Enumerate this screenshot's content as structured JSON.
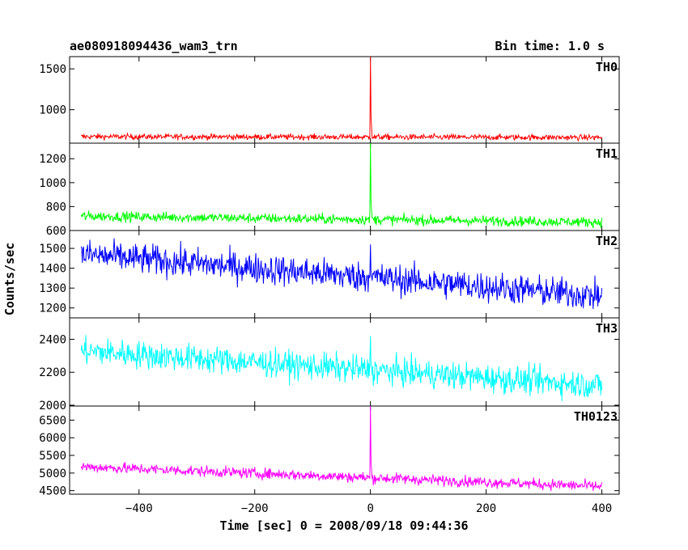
{
  "header": {
    "title": "ae080918094436_wam3_trn",
    "bin_time": "Bin time: 1.0 s"
  },
  "axes": {
    "xlabel": "Time [sec] 0 = 2008/09/18 09:44:36",
    "ylabel": "Counts/sec"
  },
  "chart_data": [
    {
      "type": "line",
      "name": "TH0",
      "color": "#ff0000",
      "x_range": [
        -500,
        400
      ],
      "ylim": [
        590,
        1650
      ],
      "yticks": [
        1000,
        1500
      ],
      "baseline": [
        [
          -500,
          670
        ],
        [
          400,
          660
        ]
      ],
      "noise": 25,
      "peak": {
        "x": 0,
        "y": 1650
      }
    },
    {
      "type": "line",
      "name": "TH1",
      "color": "#00ff00",
      "x_range": [
        -500,
        400
      ],
      "ylim": [
        600,
        1330
      ],
      "yticks": [
        600,
        800,
        1000,
        1200
      ],
      "baseline": [
        [
          -500,
          720
        ],
        [
          400,
          670
        ]
      ],
      "noise": 30,
      "peak": {
        "x": 0,
        "y": 1330
      }
    },
    {
      "type": "line",
      "name": "TH2",
      "color": "#0000ff",
      "x_range": [
        -500,
        400
      ],
      "ylim": [
        1150,
        1590
      ],
      "yticks": [
        1200,
        1300,
        1400,
        1500
      ],
      "baseline": [
        [
          -500,
          1470
        ],
        [
          400,
          1260
        ]
      ],
      "noise": 55,
      "peak": {
        "x": 0,
        "y": 1520
      }
    },
    {
      "type": "line",
      "name": "TH3",
      "color": "#00ffff",
      "x_range": [
        -500,
        400
      ],
      "ylim": [
        1995,
        2530
      ],
      "yticks": [
        2000,
        2200,
        2400
      ],
      "baseline": [
        [
          -500,
          2330
        ],
        [
          400,
          2120
        ]
      ],
      "noise": 60,
      "peak": {
        "x": 0,
        "y": 2420
      }
    },
    {
      "type": "line",
      "name": "TH0123",
      "color": "#ff00ff",
      "x_range": [
        -500,
        400
      ],
      "ylim": [
        4400,
        6900
      ],
      "yticks": [
        4500,
        5000,
        5500,
        6000,
        6500
      ],
      "baseline": [
        [
          -500,
          5180
        ],
        [
          400,
          4620
        ]
      ],
      "noise": 110,
      "peak": {
        "x": 0,
        "y": 6900
      }
    }
  ],
  "x_axis": {
    "xlim": [
      -520,
      430
    ],
    "ticks": [
      -400,
      -200,
      0,
      200,
      400
    ]
  }
}
